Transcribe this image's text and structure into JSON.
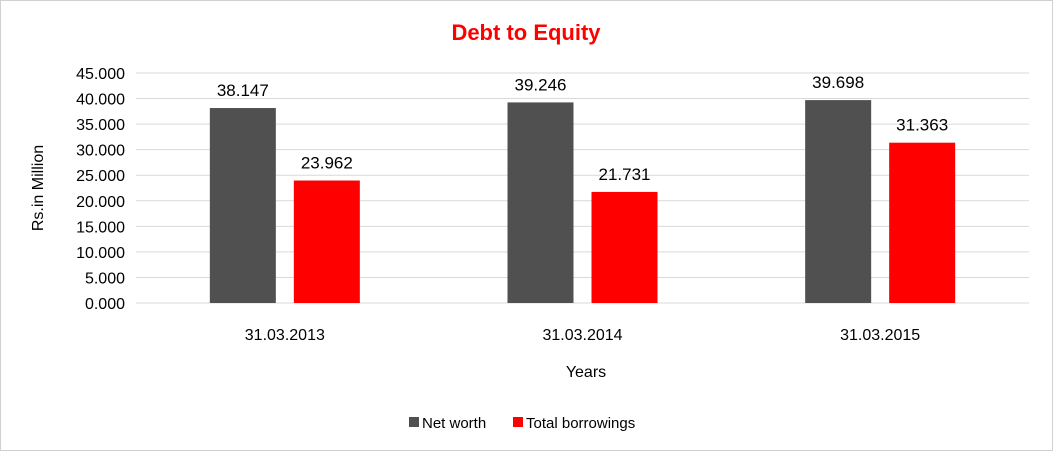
{
  "chart_data": {
    "type": "bar",
    "title": "Debt to Equity",
    "xlabel": "Years",
    "ylabel": "Rs.in Million",
    "categories": [
      "31.03.2013",
      "31.03.2014",
      "31.03.2015"
    ],
    "series": [
      {
        "name": "Net worth",
        "color": "#505050",
        "values": [
          38.147,
          39.246,
          39.698
        ],
        "labels": [
          "38.147",
          "39.246",
          "39.698"
        ]
      },
      {
        "name": "Total borrowings",
        "color": "#ff0000",
        "values": [
          23.962,
          21.731,
          31.363
        ],
        "labels": [
          "23.962",
          "21.731",
          "31.363"
        ]
      }
    ],
    "ylim": [
      0,
      45
    ],
    "yticks": [
      0,
      5,
      10,
      15,
      20,
      25,
      30,
      35,
      40,
      45
    ],
    "ytick_labels": [
      "0.000",
      "5.000",
      "10.000",
      "15.000",
      "20.000",
      "25.000",
      "30.000",
      "35.000",
      "40.000",
      "45.000"
    ],
    "grid": true,
    "legend_position": "bottom",
    "title_color": "#ff0000",
    "gridline_color": "#d9d9d9"
  }
}
